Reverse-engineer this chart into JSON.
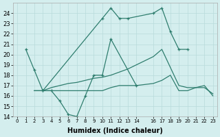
{
  "line_color": "#2e7d6e",
  "background_color": "#d4eeee",
  "grid_color": "#b8dada",
  "xlabel": "Humidex (Indice chaleur)",
  "yticks": [
    14,
    15,
    16,
    17,
    18,
    19,
    20,
    21,
    22,
    23,
    24
  ],
  "xticks": [
    0,
    1,
    2,
    3,
    4,
    5,
    6,
    7,
    8,
    9,
    10,
    11,
    12,
    13,
    14,
    16,
    17,
    18,
    19,
    20,
    21,
    22,
    23
  ],
  "xtick_labels": [
    "0",
    "1",
    "2",
    "3",
    "4",
    "5",
    "6",
    "7",
    "8",
    "9",
    "10",
    "11",
    "12",
    "13",
    "14",
    "16",
    "17",
    "18",
    "19",
    "20",
    "21",
    "22",
    "23"
  ],
  "xlim": [
    -0.5,
    23.5
  ],
  "ylim": [
    14,
    25
  ],
  "lineA_x": [
    1,
    2,
    3,
    10,
    11,
    12,
    13,
    16,
    17,
    18,
    19,
    20
  ],
  "lineA_y": [
    20.5,
    18.5,
    16.5,
    23.5,
    24.5,
    23.5,
    23.5,
    24.0,
    24.5,
    22.2,
    20.5,
    20.5
  ],
  "lineB_x": [
    3,
    4,
    5,
    6,
    7,
    8,
    9,
    10,
    11,
    14
  ],
  "lineB_y": [
    16.5,
    16.5,
    15.5,
    14.2,
    14.0,
    16.0,
    18.0,
    18.0,
    21.5,
    17.0
  ],
  "lineC_x": [
    2,
    3,
    4,
    5,
    6,
    7,
    8,
    9,
    10,
    11,
    12,
    13,
    14,
    16,
    17,
    19,
    20,
    21,
    22,
    23
  ],
  "lineC_y": [
    16.5,
    16.5,
    16.8,
    17.0,
    17.2,
    17.3,
    17.5,
    17.7,
    17.8,
    18.0,
    18.3,
    18.6,
    19.0,
    19.8,
    20.5,
    17.0,
    16.8,
    16.8,
    16.8,
    16.2
  ],
  "lineD_x": [
    2,
    3,
    4,
    5,
    6,
    7,
    8,
    9,
    10,
    11,
    12,
    13,
    14,
    16,
    17,
    18,
    19,
    20,
    21,
    22,
    23
  ],
  "lineD_y": [
    16.5,
    16.5,
    16.5,
    16.5,
    16.5,
    16.5,
    16.5,
    16.5,
    16.5,
    16.8,
    17.0,
    17.0,
    17.0,
    17.2,
    17.5,
    18.0,
    16.5,
    16.5,
    16.8,
    17.0,
    16.0
  ]
}
